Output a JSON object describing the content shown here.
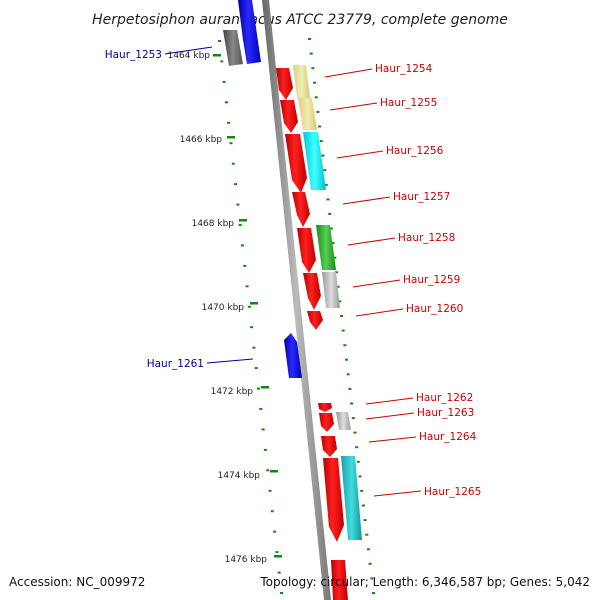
{
  "header": {
    "title": "Herpetosiphon aurantiacus ATCC 23779, complete genome"
  },
  "footer": {
    "accession": "Accession: NC_009972",
    "summary": "Topology: circular; Length: 6,346,587 bp; Genes: 5,042"
  },
  "ticks": [
    "1464 kbp",
    "1466 kbp",
    "1468 kbp",
    "1470 kbp",
    "1472 kbp",
    "1474 kbp",
    "1476 kbp"
  ],
  "genes": [
    {
      "label": "Haur_1253",
      "strand": "reverse",
      "color": "#0000ff"
    },
    {
      "label": "Haur_1254",
      "strand": "forward",
      "color": "#ff0000"
    },
    {
      "label": "Haur_1255",
      "strand": "forward",
      "color": "#ff0000"
    },
    {
      "label": "Haur_1256",
      "strand": "forward",
      "color": "#ff0000"
    },
    {
      "label": "Haur_1257",
      "strand": "forward",
      "color": "#ff0000"
    },
    {
      "label": "Haur_1258",
      "strand": "forward",
      "color": "#ff0000"
    },
    {
      "label": "Haur_1259",
      "strand": "forward",
      "color": "#ff0000"
    },
    {
      "label": "Haur_1260",
      "strand": "forward",
      "color": "#ff0000"
    },
    {
      "label": "Haur_1261",
      "strand": "reverse",
      "color": "#0000ff"
    },
    {
      "label": "Haur_1262",
      "strand": "forward",
      "color": "#ff0000"
    },
    {
      "label": "Haur_1263",
      "strand": "forward",
      "color": "#ff0000"
    },
    {
      "label": "Haur_1264",
      "strand": "forward",
      "color": "#ff0000"
    },
    {
      "label": "Haur_1265",
      "strand": "forward",
      "color": "#ff0000"
    }
  ],
  "colors": {
    "forward": "#ff0000",
    "reverse": "#0000ff",
    "forward_label": "#cc0000",
    "reverse_label": "#000099",
    "backbone": "#888888",
    "tick": "#118811"
  }
}
